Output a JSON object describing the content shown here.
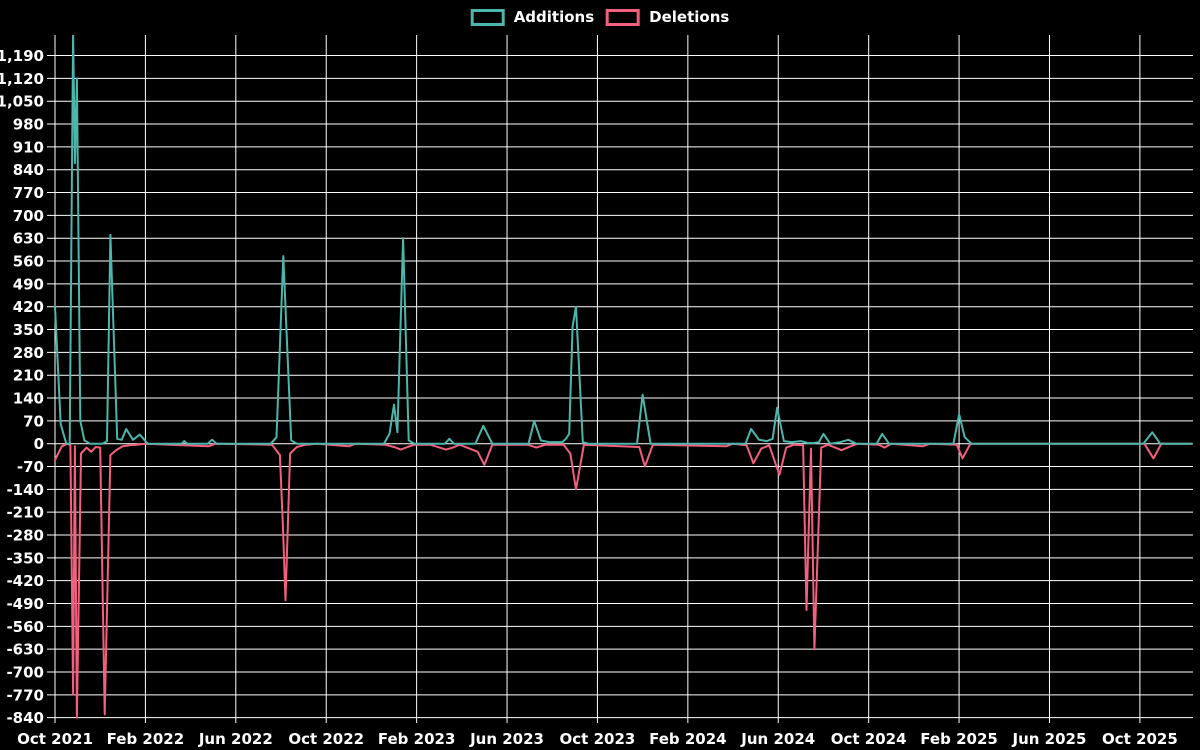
{
  "chart_data": {
    "type": "line",
    "title": "",
    "legend_position": "top-center",
    "background_color": "#000000",
    "grid": true,
    "grid_color": "#ffffff",
    "legend": [
      {
        "name": "Additions",
        "color": "#4db6ac"
      },
      {
        "name": "Deletions",
        "color": "#f2607e"
      }
    ],
    "x_axis": {
      "unit": "months since Oct 2021 (weekly data points)",
      "range": [
        0,
        50.35
      ],
      "tick_positions": [
        0,
        4,
        8,
        12,
        16,
        20,
        24,
        28,
        32,
        36,
        40,
        44,
        48
      ],
      "tick_labels": [
        "Oct 2021",
        "Feb 2022",
        "Jun 2022",
        "Oct 2022",
        "Feb 2023",
        "Jun 2023",
        "Oct 2023",
        "Feb 2024",
        "Jun 2024",
        "Oct 2024",
        "Feb 2025",
        "Jun 2025",
        "Oct 2025"
      ]
    },
    "y_axis": {
      "range": [
        -841,
        1253
      ],
      "tick_step": 70,
      "tick_values": [
        1190,
        1120,
        1050,
        980,
        910,
        840,
        770,
        700,
        630,
        560,
        490,
        420,
        350,
        280,
        210,
        140,
        70,
        0,
        -70,
        -140,
        -210,
        -280,
        -350,
        -420,
        -490,
        -560,
        -630,
        -700,
        -770,
        -840
      ],
      "tick_labels": [
        "1,190",
        "1,120",
        "1,050",
        "980",
        "910",
        "840",
        "770",
        "700",
        "630",
        "560",
        "490",
        "420",
        "350",
        "280",
        "210",
        "140",
        "70",
        "0",
        "-70",
        "-140",
        "-210",
        "-280",
        "-350",
        "-420",
        "-490",
        "-560",
        "-630",
        "-700",
        "-770",
        "-840"
      ]
    },
    "series": [
      {
        "name": "Additions",
        "color": "#4db6ac",
        "points": [
          [
            0,
            420
          ],
          [
            0.25,
            60
          ],
          [
            0.5,
            0
          ],
          [
            0.65,
            0
          ],
          [
            0.8,
            1255
          ],
          [
            0.88,
            860
          ],
          [
            0.97,
            1120
          ],
          [
            1.12,
            70
          ],
          [
            1.3,
            10
          ],
          [
            1.55,
            0
          ],
          [
            2.1,
            0
          ],
          [
            2.3,
            8
          ],
          [
            2.45,
            640
          ],
          [
            2.75,
            15
          ],
          [
            2.95,
            12
          ],
          [
            3.15,
            45
          ],
          [
            3.45,
            12
          ],
          [
            3.75,
            28
          ],
          [
            4.1,
            0
          ],
          [
            5.6,
            0
          ],
          [
            5.72,
            8
          ],
          [
            5.85,
            0
          ],
          [
            6.75,
            0
          ],
          [
            6.95,
            12
          ],
          [
            7.15,
            0
          ],
          [
            9.55,
            0
          ],
          [
            9.8,
            20
          ],
          [
            10.1,
            575
          ],
          [
            10.45,
            10
          ],
          [
            10.7,
            0
          ],
          [
            14.55,
            0
          ],
          [
            14.8,
            30
          ],
          [
            15.0,
            120
          ],
          [
            15.15,
            35
          ],
          [
            15.4,
            630
          ],
          [
            15.65,
            10
          ],
          [
            15.9,
            0
          ],
          [
            17.25,
            0
          ],
          [
            17.45,
            15
          ],
          [
            17.65,
            0
          ],
          [
            18.6,
            0
          ],
          [
            18.95,
            55
          ],
          [
            19.35,
            0
          ],
          [
            20.95,
            0
          ],
          [
            21.2,
            70
          ],
          [
            21.5,
            10
          ],
          [
            21.85,
            5
          ],
          [
            22.2,
            5
          ],
          [
            22.45,
            5
          ],
          [
            22.6,
            15
          ],
          [
            22.75,
            30
          ],
          [
            22.9,
            360
          ],
          [
            23.05,
            420
          ],
          [
            23.35,
            5
          ],
          [
            23.6,
            0
          ],
          [
            25.75,
            0
          ],
          [
            26.0,
            150
          ],
          [
            26.35,
            0
          ],
          [
            29.6,
            0
          ],
          [
            30.55,
            0
          ],
          [
            30.8,
            45
          ],
          [
            31.15,
            12
          ],
          [
            31.5,
            8
          ],
          [
            31.75,
            15
          ],
          [
            31.95,
            110
          ],
          [
            32.25,
            8
          ],
          [
            32.6,
            5
          ],
          [
            33.0,
            8
          ],
          [
            33.3,
            2
          ],
          [
            33.6,
            2
          ],
          [
            33.8,
            5
          ],
          [
            34.0,
            30
          ],
          [
            34.3,
            0
          ],
          [
            34.75,
            5
          ],
          [
            35.1,
            12
          ],
          [
            35.45,
            0
          ],
          [
            36.35,
            0
          ],
          [
            36.6,
            30
          ],
          [
            36.9,
            0
          ],
          [
            39.75,
            0
          ],
          [
            40.0,
            90
          ],
          [
            40.25,
            20
          ],
          [
            40.55,
            0
          ],
          [
            48.15,
            0
          ],
          [
            48.55,
            35
          ],
          [
            48.9,
            0
          ],
          [
            50.3,
            0
          ]
        ]
      },
      {
        "name": "Deletions",
        "color": "#f2607e",
        "points": [
          [
            0,
            -50
          ],
          [
            0.3,
            -8
          ],
          [
            0.55,
            0
          ],
          [
            0.68,
            -5
          ],
          [
            0.8,
            -770
          ],
          [
            0.88,
            -8
          ],
          [
            0.97,
            -840
          ],
          [
            1.15,
            -30
          ],
          [
            1.4,
            -12
          ],
          [
            1.6,
            -25
          ],
          [
            1.8,
            -10
          ],
          [
            2.0,
            -12
          ],
          [
            2.2,
            -830
          ],
          [
            2.45,
            -35
          ],
          [
            2.7,
            -20
          ],
          [
            3.0,
            -8
          ],
          [
            3.3,
            -5
          ],
          [
            3.6,
            -3
          ],
          [
            4.0,
            0
          ],
          [
            6.8,
            -8
          ],
          [
            7.1,
            0
          ],
          [
            9.6,
            -3
          ],
          [
            9.95,
            -35
          ],
          [
            10.08,
            -245
          ],
          [
            10.2,
            -480
          ],
          [
            10.4,
            -30
          ],
          [
            10.7,
            -10
          ],
          [
            11.1,
            -3
          ],
          [
            11.6,
            0
          ],
          [
            13.0,
            -8
          ],
          [
            13.3,
            0
          ],
          [
            14.6,
            -3
          ],
          [
            15.0,
            -10
          ],
          [
            15.3,
            -18
          ],
          [
            15.6,
            -10
          ],
          [
            15.9,
            -3
          ],
          [
            16.6,
            -3
          ],
          [
            17.3,
            -18
          ],
          [
            17.6,
            -12
          ],
          [
            17.9,
            -3
          ],
          [
            18.7,
            -25
          ],
          [
            19.0,
            -65
          ],
          [
            19.35,
            -3
          ],
          [
            20.9,
            -3
          ],
          [
            21.3,
            -12
          ],
          [
            21.7,
            -3
          ],
          [
            22.5,
            -3
          ],
          [
            22.8,
            -30
          ],
          [
            23.05,
            -140
          ],
          [
            23.4,
            -3
          ],
          [
            25.85,
            -10
          ],
          [
            26.1,
            -70
          ],
          [
            26.45,
            -3
          ],
          [
            29.7,
            -8
          ],
          [
            30.0,
            0
          ],
          [
            30.6,
            -5
          ],
          [
            30.9,
            -60
          ],
          [
            31.25,
            -15
          ],
          [
            31.6,
            -5
          ],
          [
            32.05,
            -95
          ],
          [
            32.35,
            -12
          ],
          [
            32.7,
            -3
          ],
          [
            33.1,
            -5
          ],
          [
            33.25,
            -510
          ],
          [
            33.45,
            -15
          ],
          [
            33.6,
            -630
          ],
          [
            33.9,
            -12
          ],
          [
            34.2,
            -3
          ],
          [
            34.8,
            -20
          ],
          [
            35.2,
            -8
          ],
          [
            35.5,
            0
          ],
          [
            36.45,
            -3
          ],
          [
            36.7,
            -12
          ],
          [
            37.0,
            0
          ],
          [
            38.4,
            -8
          ],
          [
            38.7,
            0
          ],
          [
            39.9,
            -3
          ],
          [
            40.15,
            -45
          ],
          [
            40.5,
            0
          ],
          [
            48.2,
            0
          ],
          [
            48.6,
            -45
          ],
          [
            48.95,
            0
          ],
          [
            50.3,
            0
          ]
        ]
      }
    ]
  }
}
